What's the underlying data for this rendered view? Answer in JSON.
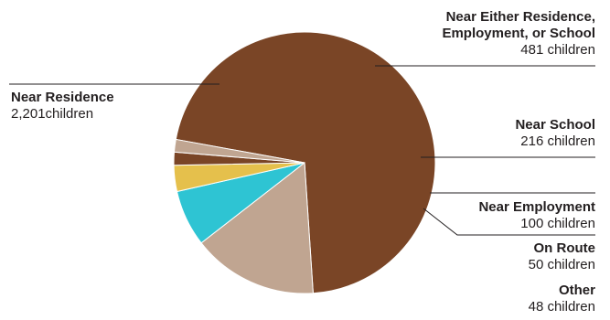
{
  "chart_data": {
    "type": "pie",
    "title": "",
    "slices": [
      {
        "name_lines": [
          "Near Residence"
        ],
        "count_text": "2,201children",
        "value": 2201,
        "color": "#7a4526"
      },
      {
        "name_lines": [
          "Near Either Residence,",
          "Employment, or School"
        ],
        "count_text": "481 children",
        "value": 481,
        "color": "#c0a591"
      },
      {
        "name_lines": [
          "Near School"
        ],
        "count_text": "216 children",
        "value": 216,
        "color": "#2ec4d3"
      },
      {
        "name_lines": [
          "Near Employment"
        ],
        "count_text": "100 children",
        "value": 100,
        "color": "#e5c04c"
      },
      {
        "name_lines": [
          "On Route"
        ],
        "count_text": "50 children",
        "value": 50,
        "color": "#7a4526"
      },
      {
        "name_lines": [
          "Other"
        ],
        "count_text": "48 children",
        "value": 48,
        "color": "#c0a591"
      }
    ]
  }
}
